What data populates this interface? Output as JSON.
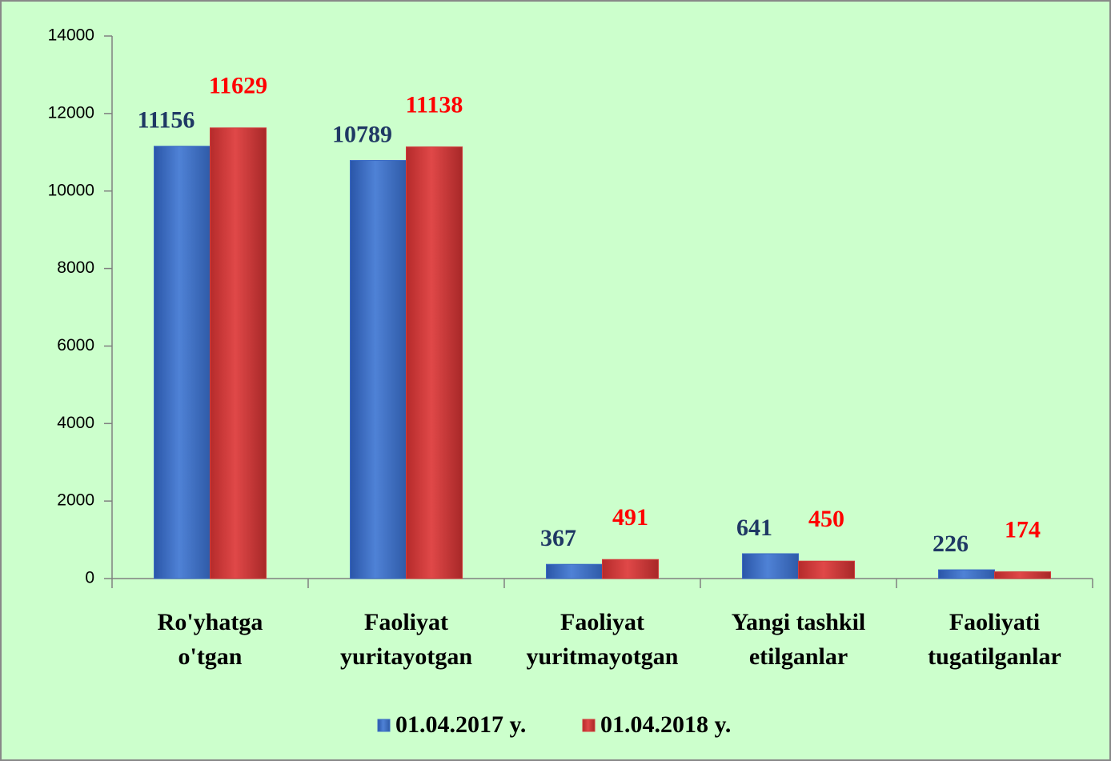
{
  "chart_data": {
    "type": "bar",
    "categories": [
      [
        "Ro'yhatga",
        "o'tgan"
      ],
      [
        "Faoliyat",
        "yuritayotgan"
      ],
      [
        "Faoliyat",
        "yuritmayotgan"
      ],
      [
        "Yangi tashkil",
        "etilganlar"
      ],
      [
        "Faoliyati",
        "tugatilganlar"
      ]
    ],
    "series": [
      {
        "name": "01.04.2017 y.",
        "color": "#3b6cc4",
        "label_color": "#1f3864",
        "values": [
          11156,
          10789,
          367,
          641,
          226
        ]
      },
      {
        "name": "01.04.2018 y.",
        "color": "#d23b3b",
        "label_color": "#ff0000",
        "values": [
          11629,
          11138,
          491,
          450,
          174
        ]
      }
    ],
    "ylim": [
      0,
      14000
    ],
    "yticks": [
      0,
      2000,
      4000,
      6000,
      8000,
      10000,
      12000,
      14000
    ]
  }
}
